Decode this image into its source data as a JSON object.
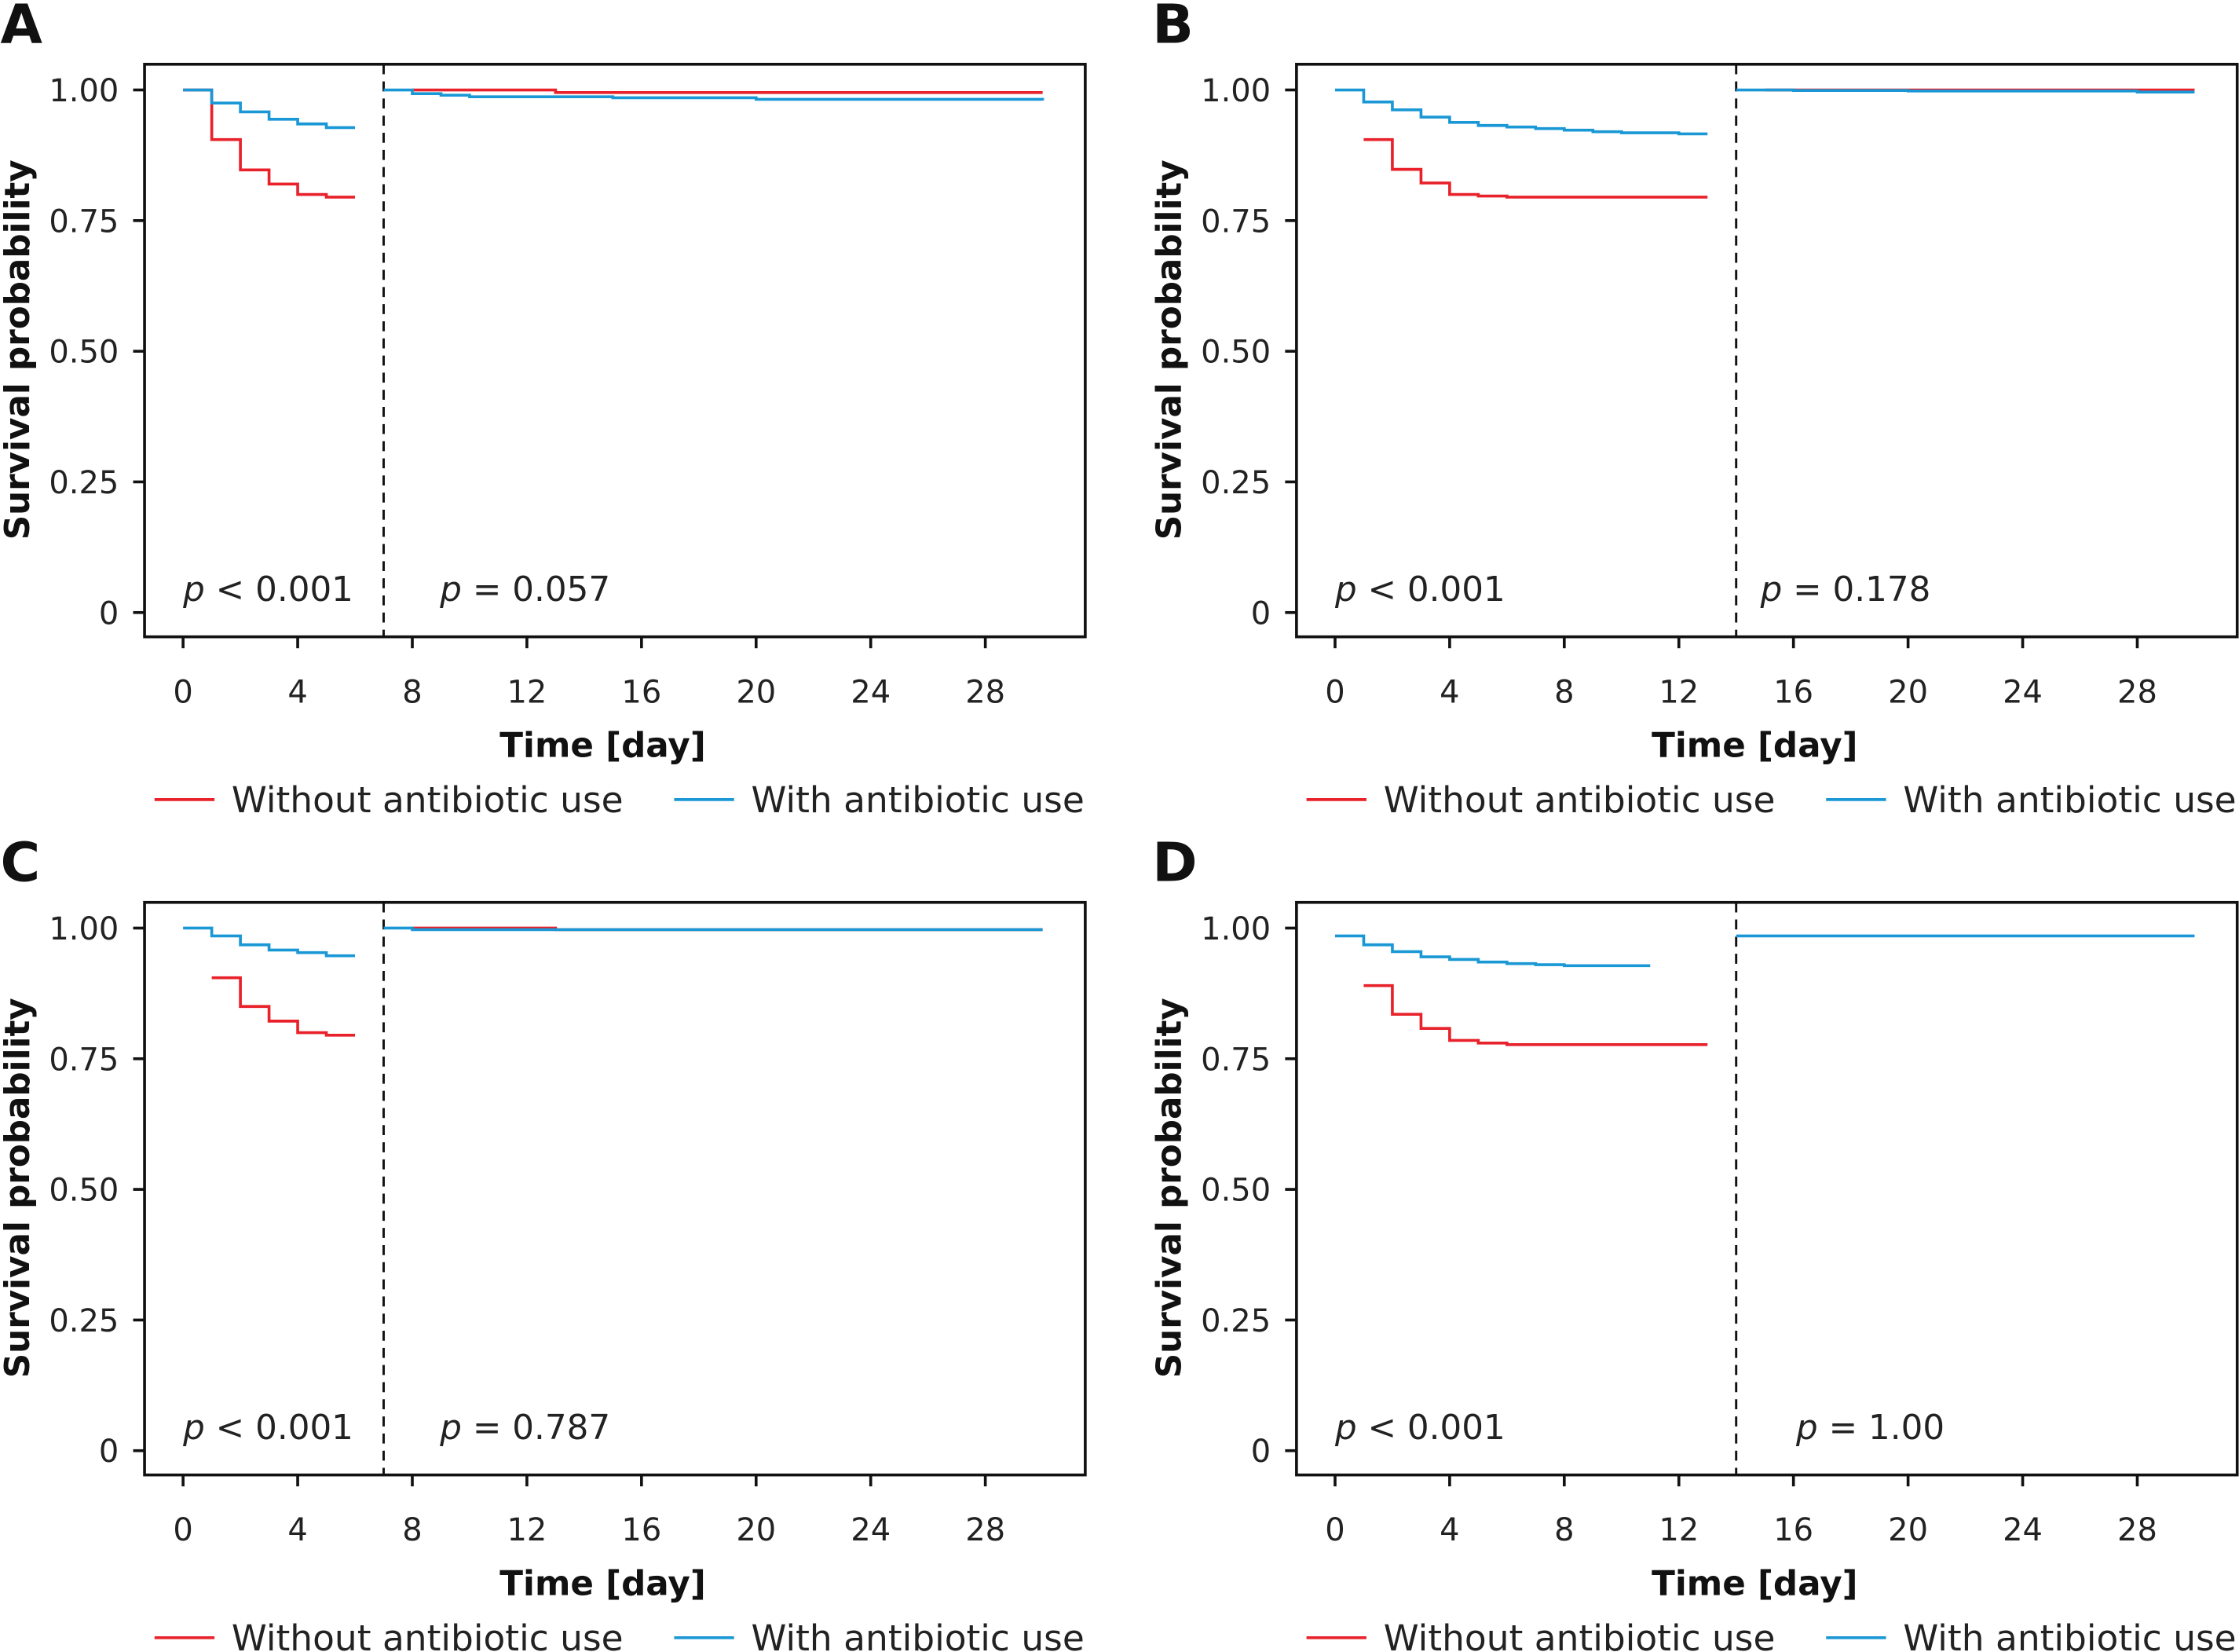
{
  "colors": {
    "without": "#e8212a",
    "with": "#1a98d5",
    "axis": "#111111"
  },
  "legend": {
    "without": "Without antibiotic use",
    "with": "With antibiotic use"
  },
  "chart_data": [
    {
      "type": "line",
      "panel": "A",
      "split_day": 7,
      "xlabel": "Time [day]",
      "ylabel": "Survival probability",
      "xlim": [
        -1.3,
        31.5
      ],
      "ylim": [
        -0.05,
        1.05
      ],
      "xticks": [
        "0",
        "4",
        "8",
        "12",
        "16",
        "20",
        "24",
        "28"
      ],
      "yticks": [
        "0",
        "0.25",
        "0.50",
        "0.75",
        "1.00"
      ],
      "p_values": [
        {
          "label": "p",
          "text": " < 0.001"
        },
        {
          "label": "p",
          "text": " = 0.057"
        }
      ],
      "series": [
        {
          "name": "Without antibiotic use",
          "segments": [
            [
              [
                0,
                1.0
              ],
              [
                1,
                0.905
              ],
              [
                2,
                0.847
              ],
              [
                3,
                0.82
              ],
              [
                4,
                0.8
              ],
              [
                5,
                0.795
              ],
              [
                6,
                0.795
              ]
            ],
            [
              [
                8,
                1.0
              ],
              [
                13,
                0.995
              ],
              [
                30,
                0.995
              ]
            ]
          ]
        },
        {
          "name": "With antibiotic use",
          "segments": [
            [
              [
                0,
                1.0
              ],
              [
                1,
                0.975
              ],
              [
                2,
                0.958
              ],
              [
                3,
                0.944
              ],
              [
                4,
                0.935
              ],
              [
                5,
                0.928
              ],
              [
                6,
                0.928
              ]
            ],
            [
              [
                7,
                1.0
              ],
              [
                8,
                0.993
              ],
              [
                9,
                0.99
              ],
              [
                10,
                0.987
              ],
              [
                15,
                0.985
              ],
              [
                20,
                0.982
              ],
              [
                30,
                0.98
              ]
            ]
          ]
        }
      ]
    },
    {
      "type": "line",
      "panel": "B",
      "split_day": 14,
      "xlabel": "Time [day]",
      "ylabel": "Survival probability",
      "xlim": [
        -1.3,
        31.5
      ],
      "ylim": [
        -0.05,
        1.05
      ],
      "xticks": [
        "0",
        "4",
        "8",
        "12",
        "16",
        "20",
        "24",
        "28"
      ],
      "yticks": [
        "0",
        "0.25",
        "0.50",
        "0.75",
        "1.00"
      ],
      "p_values": [
        {
          "label": "p",
          "text": " < 0.001"
        },
        {
          "label": "p",
          "text": " = 0.178"
        }
      ],
      "series": [
        {
          "name": "Without antibiotic use",
          "segments": [
            [
              [
                1,
                0.905
              ],
              [
                2,
                0.848
              ],
              [
                3,
                0.822
              ],
              [
                4,
                0.8
              ],
              [
                5,
                0.797
              ],
              [
                6,
                0.795
              ],
              [
                13,
                0.795
              ]
            ],
            [
              [
                15,
                1.0
              ],
              [
                30,
                1.0
              ]
            ]
          ]
        },
        {
          "name": "With antibiotic use",
          "segments": [
            [
              [
                0,
                1.0
              ],
              [
                1,
                0.977
              ],
              [
                2,
                0.962
              ],
              [
                3,
                0.948
              ],
              [
                4,
                0.938
              ],
              [
                5,
                0.932
              ],
              [
                6,
                0.929
              ],
              [
                7,
                0.926
              ],
              [
                8,
                0.923
              ],
              [
                9,
                0.92
              ],
              [
                10,
                0.918
              ],
              [
                12,
                0.916
              ],
              [
                13,
                0.916
              ]
            ],
            [
              [
                14,
                1.0
              ],
              [
                16,
                0.999
              ],
              [
                20,
                0.998
              ],
              [
                28,
                0.996
              ],
              [
                30,
                0.996
              ]
            ]
          ]
        }
      ]
    },
    {
      "type": "line",
      "panel": "C",
      "split_day": 7,
      "xlabel": "Time [day]",
      "ylabel": "Survival probability",
      "xlim": [
        -1.3,
        31.5
      ],
      "ylim": [
        -0.05,
        1.05
      ],
      "xticks": [
        "0",
        "4",
        "8",
        "12",
        "16",
        "20",
        "24",
        "28"
      ],
      "yticks": [
        "0",
        "0.25",
        "0.50",
        "0.75",
        "1.00"
      ],
      "p_values": [
        {
          "label": "p",
          "text": " < 0.001"
        },
        {
          "label": "p",
          "text": " = 0.787"
        }
      ],
      "series": [
        {
          "name": "Without antibiotic use",
          "segments": [
            [
              [
                1,
                0.905
              ],
              [
                2,
                0.85
              ],
              [
                3,
                0.822
              ],
              [
                4,
                0.8
              ],
              [
                5,
                0.795
              ],
              [
                6,
                0.795
              ]
            ],
            [
              [
                8,
                1.0
              ],
              [
                13,
                0.997
              ],
              [
                30,
                0.997
              ]
            ]
          ]
        },
        {
          "name": "With antibiotic use",
          "segments": [
            [
              [
                0,
                1.0
              ],
              [
                1,
                0.985
              ],
              [
                2,
                0.968
              ],
              [
                3,
                0.958
              ],
              [
                4,
                0.953
              ],
              [
                5,
                0.947
              ],
              [
                6,
                0.947
              ]
            ],
            [
              [
                7,
                1.0
              ],
              [
                8,
                0.997
              ],
              [
                30,
                0.997
              ]
            ]
          ]
        }
      ]
    },
    {
      "type": "line",
      "panel": "D",
      "split_day": 14,
      "xlabel": "Time [day]",
      "ylabel": "Survival probability",
      "xlim": [
        -1.3,
        31.5
      ],
      "ylim": [
        -0.05,
        1.05
      ],
      "xticks": [
        "0",
        "4",
        "8",
        "12",
        "16",
        "20",
        "24",
        "28"
      ],
      "yticks": [
        "0",
        "0.25",
        "0.50",
        "0.75",
        "1.00"
      ],
      "p_values": [
        {
          "label": "p",
          "text": " < 0.001"
        },
        {
          "label": "p",
          "text": " = 1.00"
        }
      ],
      "series": [
        {
          "name": "Without antibiotic use",
          "segments": [
            [
              [
                1,
                0.89
              ],
              [
                2,
                0.835
              ],
              [
                3,
                0.808
              ],
              [
                4,
                0.785
              ],
              [
                5,
                0.78
              ],
              [
                6,
                0.777
              ],
              [
                13,
                0.777
              ]
            ]
          ]
        },
        {
          "name": "With antibiotic use",
          "segments": [
            [
              [
                0,
                0.985
              ],
              [
                1,
                0.968
              ],
              [
                2,
                0.955
              ],
              [
                3,
                0.945
              ],
              [
                4,
                0.94
              ],
              [
                5,
                0.935
              ],
              [
                6,
                0.932
              ],
              [
                7,
                0.93
              ],
              [
                8,
                0.928
              ],
              [
                11,
                0.928
              ]
            ],
            [
              [
                14,
                0.985
              ],
              [
                30,
                0.985
              ]
            ]
          ]
        }
      ]
    }
  ]
}
